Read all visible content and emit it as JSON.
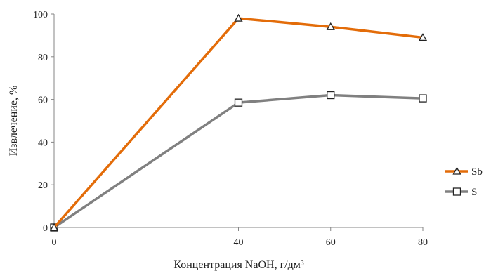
{
  "chart_data": {
    "type": "line",
    "title": "",
    "xlabel": "Концентрация NaOH, г/дм³",
    "ylabel": "Извлечение, %",
    "xlim": [
      0,
      80
    ],
    "ylim": [
      0,
      100
    ],
    "x_ticks": [
      0,
      40,
      60,
      80
    ],
    "y_ticks": [
      0,
      20,
      40,
      60,
      80,
      100
    ],
    "grid": false,
    "legend_position": "right",
    "series": [
      {
        "name": "Sb",
        "x": [
          0,
          40,
          60,
          80
        ],
        "y": [
          0,
          98,
          94,
          89
        ],
        "color": "#e36c09",
        "marker": "triangle"
      },
      {
        "name": "S",
        "x": [
          0,
          40,
          60,
          80
        ],
        "y": [
          0,
          58.5,
          62,
          60.5
        ],
        "color": "#808080",
        "marker": "square"
      }
    ]
  }
}
